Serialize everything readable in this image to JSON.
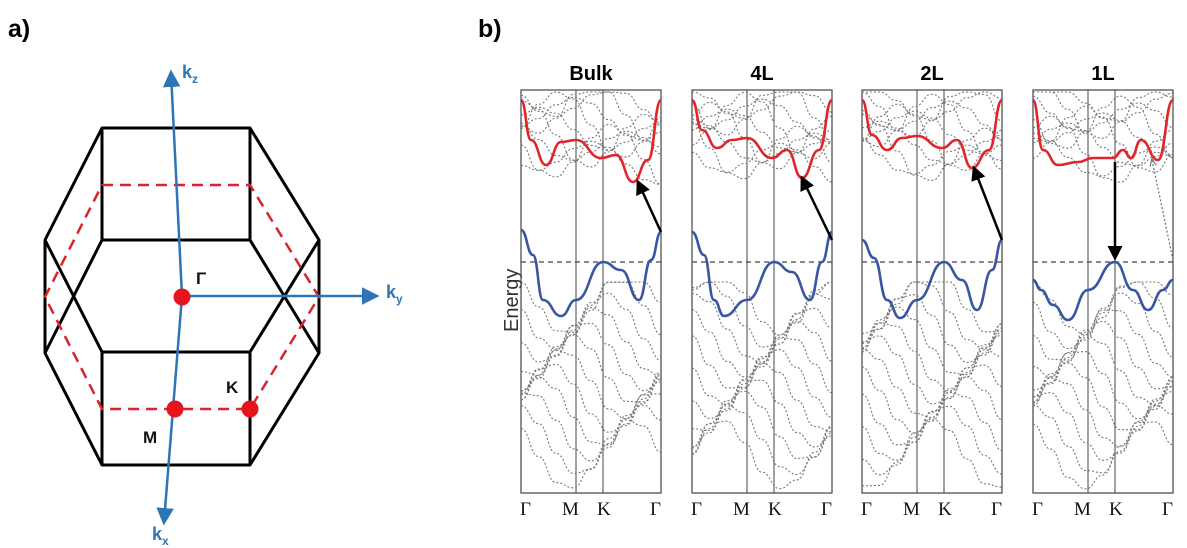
{
  "panel_a": {
    "label": "a)",
    "axes": {
      "kz": {
        "main": "k",
        "sub": "z"
      },
      "ky": {
        "main": "k",
        "sub": "y"
      },
      "kx": {
        "main": "k",
        "sub": "x"
      }
    },
    "points": {
      "gamma": "Γ",
      "K": "K",
      "M": "M"
    },
    "colors": {
      "axis": "#2E75B6",
      "point": "#E8141C",
      "dashed": "#D6262B",
      "edge": "#000000"
    }
  },
  "panel_b": {
    "label": "b)",
    "y_label": "Energy",
    "columns": [
      {
        "title": "Bulk",
        "k_points": [
          "Γ",
          "M",
          "K",
          "Γ"
        ]
      },
      {
        "title": "4L",
        "k_points": [
          "Γ",
          "M",
          "K",
          "Γ"
        ]
      },
      {
        "title": "2L",
        "k_points": [
          "Γ",
          "M",
          "K",
          "Γ"
        ]
      },
      {
        "title": "1L",
        "k_points": [
          "Γ",
          "M",
          "K",
          "Γ"
        ]
      }
    ],
    "colors": {
      "conduction": "#E0262B",
      "valence": "#3A55A4",
      "other_bands": "#777777",
      "arrow": "#000000"
    }
  }
}
